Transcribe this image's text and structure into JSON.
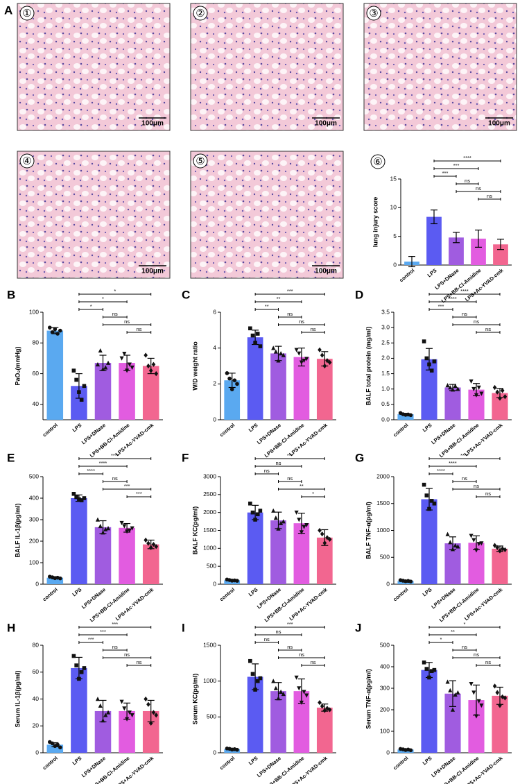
{
  "figure_label": "A",
  "images": [
    {
      "label": "①",
      "scale_bar": "100μm"
    },
    {
      "label": "②",
      "scale_bar": "100μm"
    },
    {
      "label": "③",
      "scale_bar": "100μm"
    },
    {
      "label": "④",
      "scale_bar": "100μm"
    },
    {
      "label": "⑤",
      "scale_bar": "100μm"
    }
  ],
  "chart_data": [
    {
      "type": "bar",
      "panel_label": "⑥",
      "ylabel": "lung injury score",
      "categories": [
        "control",
        "LPS",
        "LPS+DNase",
        "LPS+BB-Cl-Amidine",
        "LPS+Ac-YVAD-cmk"
      ],
      "colors": [
        "#5aa9f0",
        "#5b5bf2",
        "#a05ce0",
        "#e25ce0",
        "#f26690"
      ],
      "values": [
        0.6,
        8.4,
        4.8,
        4.6,
        3.6
      ],
      "errors": [
        0.9,
        1.2,
        0.9,
        1.5,
        0.9
      ],
      "ylim": [
        0,
        15
      ],
      "yticks": [
        0,
        5,
        10,
        15
      ],
      "brackets": [
        {
          "pair": [
            1,
            4
          ],
          "text": "****"
        },
        {
          "pair": [
            1,
            3
          ],
          "text": "***"
        },
        {
          "pair": [
            1,
            2
          ],
          "text": "***"
        },
        {
          "pair": [
            2,
            3
          ],
          "text": "ns"
        },
        {
          "pair": [
            2,
            4
          ],
          "text": "ns"
        },
        {
          "pair": [
            3,
            4
          ],
          "text": "ns"
        }
      ]
    },
    {
      "type": "bar",
      "panel_label": "B",
      "ylabel": "PaO₂(mmHg)",
      "categories": [
        "control",
        "LPS",
        "LPS+DNase",
        "LPS+BB-Cl-Amidine",
        "LPS+Ac-YVAD-cmk"
      ],
      "colors": [
        "#5aa9f0",
        "#5b5bf2",
        "#a05ce0",
        "#e25ce0",
        "#f26690"
      ],
      "markers": [
        "circle",
        "square",
        "triangle",
        "triangle-down",
        "diamond"
      ],
      "values": [
        88,
        52,
        67,
        67,
        65
      ],
      "errors": [
        2,
        8,
        5,
        5,
        5
      ],
      "points": [
        [
          90,
          87,
          89,
          86,
          88
        ],
        [
          62,
          56,
          48,
          43,
          52
        ],
        [
          66,
          75,
          63,
          64,
          67
        ],
        [
          70,
          73,
          62,
          66,
          64
        ],
        [
          72,
          65,
          62,
          66,
          60
        ]
      ],
      "ylim": [
        30,
        100
      ],
      "yticks": [
        40,
        60,
        80,
        100
      ],
      "brackets": [
        {
          "pair": [
            1,
            4
          ],
          "text": "*"
        },
        {
          "pair": [
            1,
            3
          ],
          "text": "*"
        },
        {
          "pair": [
            1,
            2
          ],
          "text": "*"
        },
        {
          "pair": [
            2,
            3
          ],
          "text": "ns"
        },
        {
          "pair": [
            2,
            4
          ],
          "text": "ns"
        },
        {
          "pair": [
            3,
            4
          ],
          "text": "ns"
        }
      ]
    },
    {
      "type": "bar",
      "panel_label": "C",
      "ylabel": "W/D weight ratio",
      "categories": [
        "control",
        "LPS",
        "LPS+DNase",
        "LPS+BB-Cl-Amidine",
        "LPS+Ac-YVAD-cmk"
      ],
      "colors": [
        "#5aa9f0",
        "#5b5bf2",
        "#a05ce0",
        "#e25ce0",
        "#f26690"
      ],
      "markers": [
        "circle",
        "square",
        "triangle",
        "triangle-down",
        "diamond"
      ],
      "values": [
        2.2,
        4.6,
        3.7,
        3.5,
        3.4
      ],
      "errors": [
        0.4,
        0.4,
        0.4,
        0.5,
        0.4
      ],
      "points": [
        [
          2.6,
          2.3,
          1.7,
          2.2,
          2.0
        ],
        [
          5.1,
          4.7,
          4.3,
          4.8,
          4.1
        ],
        [
          4.0,
          3.8,
          3.3,
          3.7,
          3.6
        ],
        [
          3.9,
          3.7,
          3.2,
          3.3,
          3.4
        ],
        [
          3.9,
          3.6,
          3.0,
          3.3,
          3.2
        ]
      ],
      "ylim": [
        0,
        6
      ],
      "yticks": [
        0,
        2,
        4,
        6
      ],
      "brackets": [
        {
          "pair": [
            1,
            4
          ],
          "text": "***"
        },
        {
          "pair": [
            1,
            3
          ],
          "text": "**"
        },
        {
          "pair": [
            1,
            2
          ],
          "text": "**"
        },
        {
          "pair": [
            2,
            3
          ],
          "text": "ns"
        },
        {
          "pair": [
            2,
            4
          ],
          "text": "ns"
        },
        {
          "pair": [
            3,
            4
          ],
          "text": "ns"
        }
      ]
    },
    {
      "type": "bar",
      "panel_label": "D",
      "ylabel": "BALF total protein (mg/ml)",
      "categories": [
        "control",
        "LPS",
        "LPS+DNase",
        "LPS+BB-Cl-Amidine",
        "LPS+Ac-YVAD-cmk"
      ],
      "colors": [
        "#5aa9f0",
        "#5b5bf2",
        "#a05ce0",
        "#e25ce0",
        "#f26690"
      ],
      "markers": [
        "circle",
        "square",
        "triangle",
        "triangle-down",
        "diamond"
      ],
      "values": [
        0.18,
        1.97,
        1.05,
        0.98,
        0.87
      ],
      "errors": [
        0.03,
        0.35,
        0.1,
        0.2,
        0.15
      ],
      "points": [
        [
          0.22,
          0.18,
          0.16,
          0.17,
          0.15
        ],
        [
          2.55,
          2.0,
          1.8,
          1.6,
          1.9
        ],
        [
          1.12,
          1.05,
          0.98,
          1.1,
          1.0
        ],
        [
          1.25,
          1.0,
          0.8,
          1.05,
          0.85
        ],
        [
          1.05,
          0.9,
          0.7,
          0.95,
          0.75
        ]
      ],
      "ylim": [
        0,
        3.5
      ],
      "yticks": [
        {
          "value": 0,
          "label": "0.0"
        },
        0.5,
        {
          "value": 1,
          "label": "1.0"
        },
        1.5,
        {
          "value": 2,
          "label": "2.0"
        },
        2.5,
        {
          "value": 3,
          "label": "3.0"
        },
        3.5
      ],
      "brackets": [
        {
          "pair": [
            1,
            4
          ],
          "text": "****"
        },
        {
          "pair": [
            1,
            3
          ],
          "text": "****"
        },
        {
          "pair": [
            1,
            2
          ],
          "text": "***"
        },
        {
          "pair": [
            2,
            3
          ],
          "text": "ns"
        },
        {
          "pair": [
            2,
            4
          ],
          "text": "ns"
        },
        {
          "pair": [
            3,
            4
          ],
          "text": "ns"
        }
      ]
    },
    {
      "type": "bar",
      "panel_label": "E",
      "ylabel": "BALF IL-1β(pg/ml)",
      "categories": [
        "control",
        "LPS",
        "LPS+DNase",
        "LPS+BB-Cl-Amidine",
        "LPS+Ac-YVAD-cmk"
      ],
      "colors": [
        "#5aa9f0",
        "#5b5bf2",
        "#a05ce0",
        "#e25ce0",
        "#f26690"
      ],
      "markers": [
        "circle",
        "square",
        "triangle",
        "triangle-down",
        "diamond"
      ],
      "values": [
        30,
        400,
        265,
        262,
        185
      ],
      "errors": [
        5,
        15,
        30,
        20,
        20
      ],
      "points": [
        [
          35,
          32,
          28,
          30,
          27
        ],
        [
          420,
          405,
          395,
          390,
          400
        ],
        [
          300,
          270,
          240,
          255,
          260
        ],
        [
          285,
          270,
          245,
          250,
          260
        ],
        [
          205,
          190,
          170,
          185,
          175
        ]
      ],
      "ylim": [
        0,
        500
      ],
      "yticks": [
        0,
        100,
        200,
        300,
        400,
        500
      ],
      "brackets": [
        {
          "pair": [
            1,
            4
          ],
          "text": "****"
        },
        {
          "pair": [
            1,
            3
          ],
          "text": "****"
        },
        {
          "pair": [
            1,
            2
          ],
          "text": "****"
        },
        {
          "pair": [
            2,
            3
          ],
          "text": "ns"
        },
        {
          "pair": [
            2,
            4
          ],
          "text": "***"
        },
        {
          "pair": [
            3,
            4
          ],
          "text": "***"
        }
      ]
    },
    {
      "type": "bar",
      "panel_label": "F",
      "ylabel": "BALF KC(pg/ml)",
      "categories": [
        "control",
        "LPS",
        "LPS+DNase",
        "LPS+BB-Cl-Amidine",
        "LPS+Ac-YVAD-cmk"
      ],
      "colors": [
        "#5aa9f0",
        "#5b5bf2",
        "#a05ce0",
        "#e25ce0",
        "#f26690"
      ],
      "markers": [
        "circle",
        "square",
        "triangle",
        "triangle-down",
        "diamond"
      ],
      "values": [
        110,
        2000,
        1780,
        1700,
        1300
      ],
      "errors": [
        20,
        200,
        230,
        280,
        220
      ],
      "points": [
        [
          130,
          115,
          100,
          105,
          95
        ],
        [
          2250,
          2000,
          1800,
          1950,
          2050
        ],
        [
          2050,
          1850,
          1550,
          1700,
          1750
        ],
        [
          2000,
          1800,
          1450,
          1600,
          1650
        ],
        [
          1500,
          1400,
          1150,
          1300,
          1250
        ]
      ],
      "ylim": [
        0,
        3000
      ],
      "yticks": [
        0,
        500,
        1000,
        1500,
        2000,
        2500,
        3000
      ],
      "brackets": [
        {
          "pair": [
            1,
            4
          ],
          "text": "***"
        },
        {
          "pair": [
            1,
            3
          ],
          "text": "ns"
        },
        {
          "pair": [
            1,
            2
          ],
          "text": "ns"
        },
        {
          "pair": [
            2,
            3
          ],
          "text": "ns"
        },
        {
          "pair": [
            2,
            4
          ],
          "text": "**"
        },
        {
          "pair": [
            3,
            4
          ],
          "text": "*"
        }
      ]
    },
    {
      "type": "bar",
      "panel_label": "G",
      "ylabel": "BALF TNF-α(pg/ml)",
      "categories": [
        "control",
        "LPS",
        "LPS+DNase",
        "LPS+BB-Cl-Amidine",
        "LPS+Ac-YVAD-cmk"
      ],
      "colors": [
        "#5aa9f0",
        "#5b5bf2",
        "#a05ce0",
        "#e25ce0",
        "#f26690"
      ],
      "markers": [
        "circle",
        "square",
        "triangle",
        "triangle-down",
        "diamond"
      ],
      "values": [
        60,
        1580,
        760,
        770,
        660
      ],
      "errors": [
        10,
        200,
        120,
        130,
        50
      ],
      "points": [
        [
          75,
          65,
          55,
          60,
          50
        ],
        [
          1850,
          1650,
          1400,
          1550,
          1500
        ],
        [
          930,
          780,
          650,
          720,
          700
        ],
        [
          900,
          820,
          630,
          750,
          760
        ],
        [
          720,
          680,
          620,
          660,
          640
        ]
      ],
      "ylim": [
        0,
        2000
      ],
      "yticks": [
        0,
        500,
        1000,
        1500,
        2000
      ],
      "brackets": [
        {
          "pair": [
            1,
            4
          ],
          "text": "****"
        },
        {
          "pair": [
            1,
            3
          ],
          "text": "****"
        },
        {
          "pair": [
            1,
            2
          ],
          "text": "****"
        },
        {
          "pair": [
            2,
            3
          ],
          "text": "ns"
        },
        {
          "pair": [
            2,
            4
          ],
          "text": "ns"
        },
        {
          "pair": [
            3,
            4
          ],
          "text": "ns"
        }
      ]
    },
    {
      "type": "bar",
      "panel_label": "H",
      "ylabel": "Serum IL-1β(pg/ml)",
      "categories": [
        "control",
        "LPS",
        "LPS+DNase",
        "LPS+BB-Cl-Amidine",
        "LPS+Ac-YVAD-cmk"
      ],
      "colors": [
        "#5aa9f0",
        "#5b5bf2",
        "#a05ce0",
        "#e25ce0",
        "#f26690"
      ],
      "markers": [
        "circle",
        "square",
        "triangle",
        "triangle-down",
        "diamond"
      ],
      "values": [
        6,
        63,
        31,
        31,
        31
      ],
      "errors": [
        1.5,
        8,
        8,
        6,
        8
      ],
      "points": [
        [
          8,
          7,
          5,
          6,
          4
        ],
        [
          72,
          65,
          55,
          60,
          63
        ],
        [
          40,
          35,
          24,
          28,
          30
        ],
        [
          38,
          33,
          25,
          30,
          28
        ],
        [
          40,
          36,
          22,
          30,
          28
        ]
      ],
      "ylim": [
        0,
        80
      ],
      "yticks": [
        0,
        20,
        40,
        60,
        80
      ],
      "brackets": [
        {
          "pair": [
            1,
            4
          ],
          "text": "***"
        },
        {
          "pair": [
            1,
            3
          ],
          "text": "***"
        },
        {
          "pair": [
            1,
            2
          ],
          "text": "***"
        },
        {
          "pair": [
            2,
            3
          ],
          "text": "ns"
        },
        {
          "pair": [
            2,
            4
          ],
          "text": "ns"
        },
        {
          "pair": [
            3,
            4
          ],
          "text": "ns"
        }
      ]
    },
    {
      "type": "bar",
      "panel_label": "I",
      "ylabel": "Serum KC(pg/ml)",
      "categories": [
        "control",
        "LPS",
        "LPS+DNase",
        "LPS+BB-Cl-Amidine",
        "LPS+Ac-YVAD-cmk"
      ],
      "colors": [
        "#5aa9f0",
        "#5b5bf2",
        "#a05ce0",
        "#e25ce0",
        "#f26690"
      ],
      "markers": [
        "circle",
        "square",
        "triangle",
        "triangle-down",
        "diamond"
      ],
      "values": [
        50,
        1060,
        860,
        860,
        630
      ],
      "errors": [
        10,
        180,
        120,
        170,
        50
      ],
      "points": [
        [
          60,
          55,
          45,
          50,
          42
        ],
        [
          1280,
          1100,
          880,
          1000,
          1040
        ],
        [
          1000,
          900,
          760,
          850,
          820
        ],
        [
          1050,
          900,
          700,
          850,
          800
        ],
        [
          700,
          650,
          590,
          620,
          600
        ]
      ],
      "ylim": [
        0,
        1500
      ],
      "yticks": [
        0,
        500,
        1000,
        1500
      ],
      "brackets": [
        {
          "pair": [
            1,
            4
          ],
          "text": "***"
        },
        {
          "pair": [
            1,
            3
          ],
          "text": "ns"
        },
        {
          "pair": [
            1,
            2
          ],
          "text": "ns"
        },
        {
          "pair": [
            2,
            3
          ],
          "text": "ns"
        },
        {
          "pair": [
            2,
            4
          ],
          "text": "ns"
        },
        {
          "pair": [
            3,
            4
          ],
          "text": "ns"
        }
      ]
    },
    {
      "type": "bar",
      "panel_label": "J",
      "ylabel": "Serum TNF-α(pg/ml)",
      "categories": [
        "control",
        "LPS",
        "LPS+DNase",
        "LPS+BB-Cl-Amidine",
        "LPS+Ac-YVAD-cmk"
      ],
      "colors": [
        "#5aa9f0",
        "#5b5bf2",
        "#a05ce0",
        "#e25ce0",
        "#f26690"
      ],
      "markers": [
        "circle",
        "square",
        "triangle",
        "triangle-down",
        "diamond"
      ],
      "values": [
        15,
        385,
        275,
        245,
        265
      ],
      "errors": [
        3,
        35,
        60,
        70,
        40
      ],
      "points": [
        [
          18,
          16,
          13,
          15,
          12
        ],
        [
          420,
          390,
          350,
          380,
          385
        ],
        [
          330,
          290,
          200,
          270,
          280
        ],
        [
          320,
          280,
          170,
          240,
          220
        ],
        [
          310,
          280,
          220,
          260,
          255
        ]
      ],
      "ylim": [
        0,
        500
      ],
      "yticks": [
        0,
        100,
        200,
        300,
        400,
        500
      ],
      "brackets": [
        {
          "pair": [
            1,
            4
          ],
          "text": "*"
        },
        {
          "pair": [
            1,
            3
          ],
          "text": "**"
        },
        {
          "pair": [
            1,
            2
          ],
          "text": "*"
        },
        {
          "pair": [
            2,
            3
          ],
          "text": "ns"
        },
        {
          "pair": [
            2,
            4
          ],
          "text": "ns"
        },
        {
          "pair": [
            3,
            4
          ],
          "text": "ns"
        }
      ]
    }
  ]
}
